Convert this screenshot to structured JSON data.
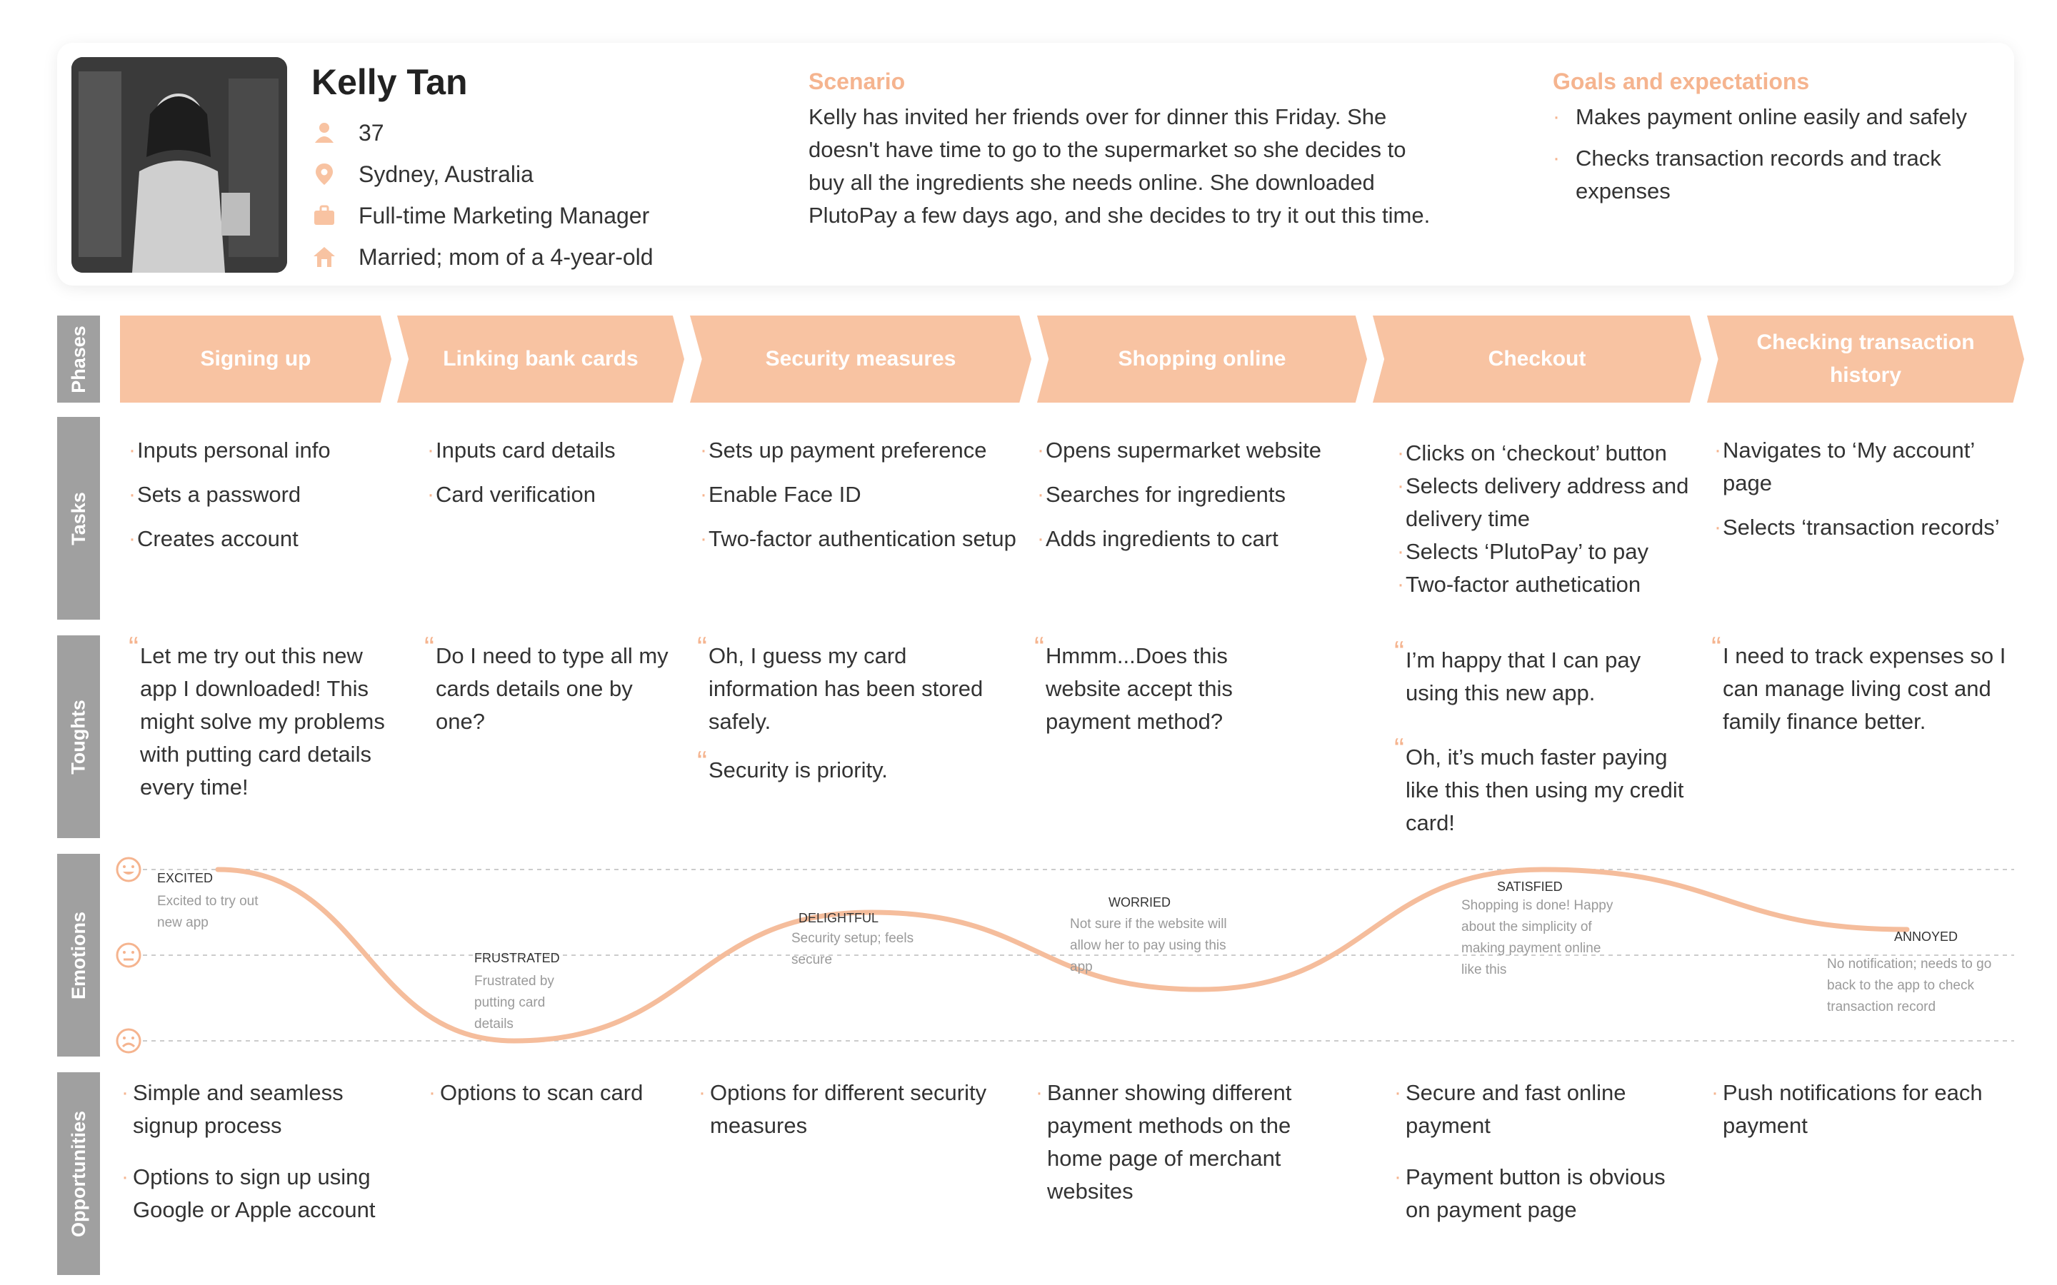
{
  "persona": {
    "name": "Kelly Tan",
    "age": "37",
    "location": "Sydney, Australia",
    "job": "Full-time Marketing Manager",
    "family": "Married; mom of a 4-year-old"
  },
  "scenario": {
    "heading": "Scenario",
    "text": "Kelly has invited her friends over for dinner this Friday. She doesn't have time to go to the supermarket so she decides to buy all the ingredients she needs online. She downloaded PlutoPay a few days ago, and she decides to try it out this time."
  },
  "goals": {
    "heading": "Goals and expectations",
    "items": [
      "Makes payment online easily and safely",
      "Checks transaction records and track expenses"
    ]
  },
  "rows": {
    "phases": "Phases",
    "tasks": "Tasks",
    "thoughts": "Toughts",
    "emotions": "Emotions",
    "opportunities": "Opportunities"
  },
  "phases": [
    "Signing up",
    "Linking bank cards",
    "Security measures",
    "Shopping online",
    "Checkout",
    "Checking transaction history"
  ],
  "tasks": [
    [
      "Inputs personal info",
      "Sets a password",
      "Creates account"
    ],
    [
      "Inputs card details",
      "Card verification"
    ],
    [
      "Sets up payment preference",
      "Enable Face ID",
      "Two-factor authentication setup"
    ],
    [
      "Opens supermarket website",
      "Searches for ingredients",
      "Adds ingredients to cart"
    ],
    [
      "Clicks on ‘checkout’ button",
      "Selects delivery address and delivery time",
      "Selects ‘PlutoPay’ to pay",
      "Two-factor authetication"
    ],
    [
      "Navigates to ‘My account’ page",
      "Selects ‘transaction records’"
    ]
  ],
  "thoughts": [
    [
      "Let me try out this new app I downloaded! This might solve my problems with putting card details every time!"
    ],
    [
      "Do I need to type all my cards details one by one?"
    ],
    [
      "Oh, I guess my card information has been stored safely.",
      "Security is priority."
    ],
    [
      "Hmmm...Does this website accept this payment method?"
    ],
    [
      "I’m happy that I can pay using this new app.",
      "Oh, it’s much faster paying like this then using my credit card!"
    ],
    [
      "I need to track expenses so I can manage living cost and family finance better."
    ]
  ],
  "emotions": [
    {
      "label": "EXCITED",
      "desc": "Excited to try out new app",
      "level": 1.0
    },
    {
      "label": "FRUSTRATED",
      "desc": "Frustrated by putting card details",
      "level": 0.0
    },
    {
      "label": "DELIGHTFUL",
      "desc": "Security setup; feels secure",
      "level": 0.75
    },
    {
      "label": "WORRIED",
      "desc": "Not sure if the website will allow her to pay using this app",
      "level": 0.3
    },
    {
      "label": "SATISFIED",
      "desc": "Shopping is done! Happy about the simplicity of making payment online like this",
      "level": 1.0
    },
    {
      "label": "ANNOYED",
      "desc": "No notification; needs to go back to the app to check transaction record",
      "level": 0.65
    }
  ],
  "opportunities": [
    [
      "Simple and seamless signup process",
      "Options to sign up using Google or Apple account"
    ],
    [
      "Options to scan card"
    ],
    [
      "Options for different security measures"
    ],
    [
      "Banner showing different payment methods on the home page of merchant websites"
    ],
    [
      "Secure and fast online payment",
      "Payment button is obvious on payment page"
    ],
    [
      "Push notifications for each payment"
    ]
  ],
  "colors": {
    "accent": "#f8c3a2",
    "accent_text": "#f5b48f",
    "row_label_bg": "#a0a0a0",
    "curve": "#f5bd9c"
  }
}
